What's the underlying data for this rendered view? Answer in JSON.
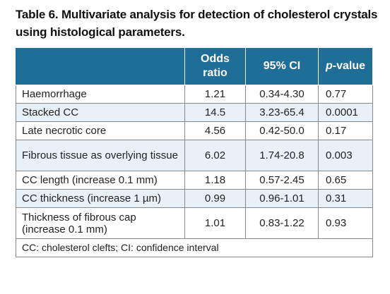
{
  "title": "Table 6. Multivariate analysis for detection of cholesterol crystals using histological parameters.",
  "table": {
    "headers": {
      "col1": "",
      "odds_line1": "Odds",
      "odds_line2": "ratio",
      "ci": "95% CI",
      "p_italic": "p",
      "p_rest": "-value"
    },
    "rows": [
      {
        "label": "Haemorrhage",
        "or": "1.21",
        "ci": "0.34-4.30",
        "p": "0.77"
      },
      {
        "label": "Stacked CC",
        "or": "14.5",
        "ci": "3.23-65.4",
        "p": "0.0001"
      },
      {
        "label": "Late necrotic core",
        "or": "4.56",
        "ci": "0.42-50.0",
        "p": "0.17"
      },
      {
        "label": "Fibrous tissue as overlying tissue",
        "or": "6.02",
        "ci": "1.74-20.8",
        "p": "0.003"
      },
      {
        "label": "CC length (increase 0.1 mm)",
        "or": "1.18",
        "ci": "0.57-2.45",
        "p": "0.65"
      },
      {
        "label": "CC thickness (increase 1 µm)",
        "or": "0.99",
        "ci": "0.96-1.01",
        "p": "0.31"
      },
      {
        "label": "Thickness of fibrous cap (increase 0.1 mm)",
        "or": "1.01",
        "ci": "0.83-1.22",
        "p": "0.93"
      }
    ],
    "footnote": "CC: cholesterol clefts; CI: confidence interval"
  },
  "colors": {
    "header_bg": "#1f6e98",
    "row_shade": "#e8f1f7",
    "border": "#888888"
  }
}
